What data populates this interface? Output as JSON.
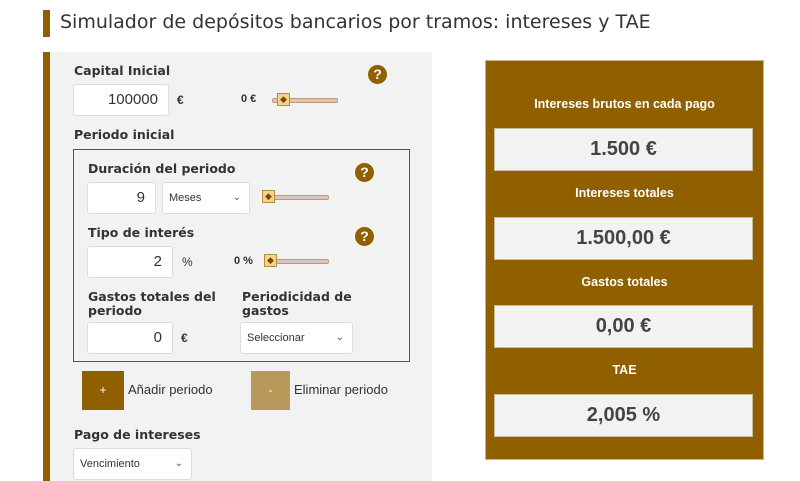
{
  "title": "Simulador de depósitos bancarios por tramos: intereses y TAE",
  "colors": {
    "brand": "#8f5f00",
    "brand_light": "#b8995a",
    "box_border": "#9b3a3a"
  },
  "form": {
    "capital": {
      "label": "Capital Inicial",
      "value": "100000",
      "unit": "€",
      "slider_label": "0 €",
      "help": "?"
    },
    "period_heading": "Periodo inicial",
    "duration": {
      "label": "Duración del periodo",
      "value": "9",
      "unit_select": "Meses",
      "help": "?"
    },
    "interest": {
      "label": "Tipo de interés",
      "value": "2",
      "unit": "%",
      "slider_label": "0 %",
      "help": "?"
    },
    "expenses": {
      "label": "Gastos totales del periodo",
      "value": "0",
      "unit": "€"
    },
    "expense_periodicity": {
      "label": "Periodicidad de gastos",
      "select": "Seleccionar"
    },
    "add": {
      "icon": "+",
      "label": "Añadir periodo"
    },
    "remove": {
      "icon": "-",
      "label": "Eliminar periodo"
    },
    "payment": {
      "label": "Pago de intereses",
      "select": "Vencimiento"
    }
  },
  "results": [
    {
      "label": "Intereses brutos en cada pago",
      "value": "1.500 €"
    },
    {
      "label": "Intereses totales",
      "value": "1.500,00 €"
    },
    {
      "label": "Gastos totales",
      "value": "0,00 €"
    },
    {
      "label": "TAE",
      "value": "2,005 %"
    }
  ]
}
